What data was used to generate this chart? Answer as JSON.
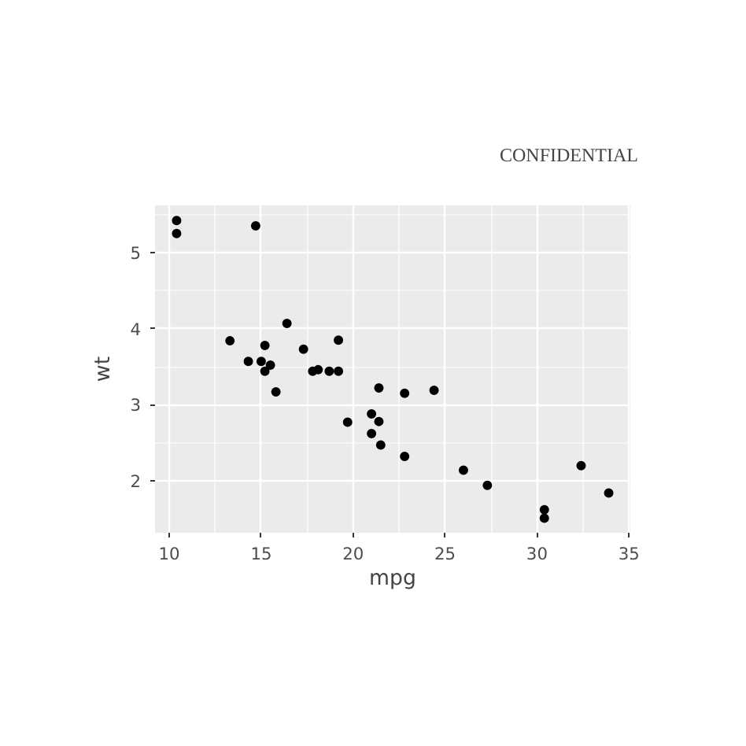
{
  "chart_data": {
    "type": "scatter",
    "xlabel": "mpg",
    "ylabel": "wt",
    "annotations": [
      "CONFIDENTIAL"
    ],
    "x": [
      21.0,
      21.0,
      22.8,
      21.4,
      18.7,
      18.1,
      14.3,
      24.4,
      22.8,
      19.2,
      17.8,
      16.4,
      17.3,
      15.2,
      10.4,
      10.4,
      14.7,
      32.4,
      30.4,
      33.9,
      21.5,
      15.5,
      15.2,
      13.3,
      19.2,
      27.3,
      26.0,
      30.4,
      15.8,
      19.7,
      15.0,
      21.4
    ],
    "series": [
      {
        "color": "#000000",
        "values": [
          2.62,
          2.88,
          2.32,
          3.22,
          3.44,
          3.46,
          3.57,
          3.19,
          3.15,
          3.44,
          3.44,
          4.07,
          3.73,
          3.78,
          5.25,
          5.42,
          5.35,
          2.2,
          1.62,
          1.84,
          2.47,
          3.52,
          3.44,
          3.84,
          3.85,
          1.94,
          2.14,
          1.51,
          3.17,
          2.77,
          3.57,
          2.78
        ]
      }
    ],
    "xlim": [
      9.225,
      35.075
    ],
    "ylim": [
      1.318,
      5.62
    ],
    "xticks": [
      10,
      15,
      20,
      25,
      30,
      35
    ],
    "yticks": [
      2,
      3,
      4,
      5
    ],
    "grid": true,
    "marker": "circle"
  }
}
